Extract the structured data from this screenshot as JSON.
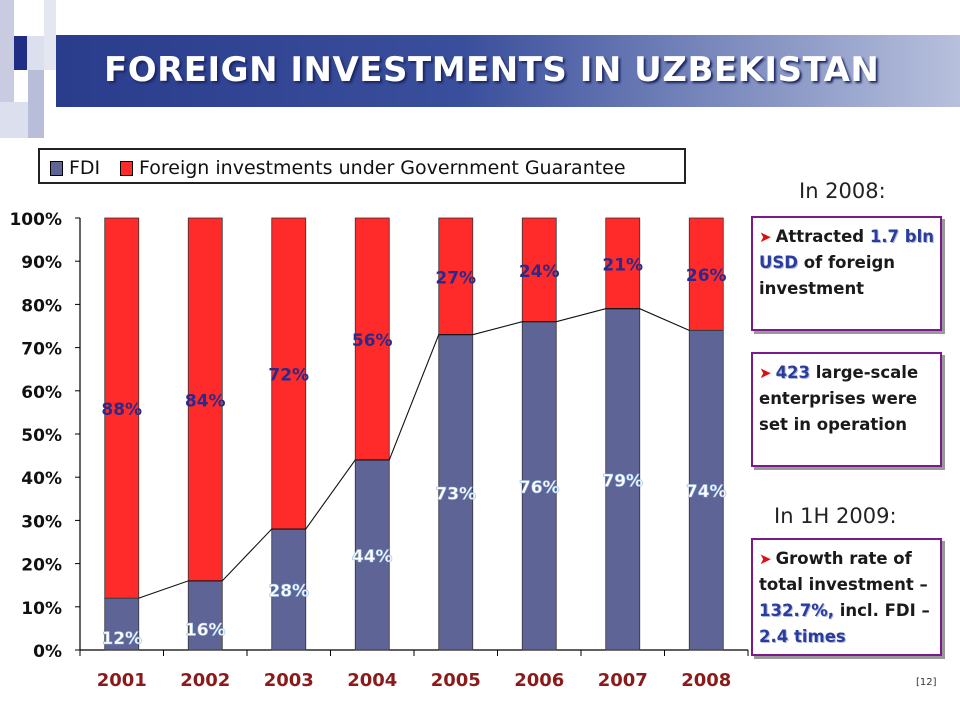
{
  "title": "FOREIGN INVESTMENTS IN UZBEKISTAN",
  "colors": {
    "fdi": "#5e6496",
    "guarantee": "#ff2a2a",
    "title_bar": "#2a3c8c",
    "callout_border": "#7a1a8c",
    "highlight": "#2a3c9c"
  },
  "legend": {
    "fdi": "FDI",
    "guarantee": "Foreign investments under Government Guarantee"
  },
  "chart_data": {
    "type": "bar",
    "stacked": true,
    "categories": [
      "2001",
      "2002",
      "2003",
      "2004",
      "2005",
      "2006",
      "2007",
      "2008"
    ],
    "series": [
      {
        "name": "FDI",
        "values": [
          12,
          16,
          28,
          44,
          73,
          76,
          79,
          74
        ],
        "labels": [
          "12%",
          "16%",
          "28%",
          "44%",
          "73%",
          "76%",
          "79%",
          "74%"
        ]
      },
      {
        "name": "Foreign investments under Government Guarantee",
        "values": [
          88,
          84,
          72,
          56,
          27,
          24,
          21,
          26
        ],
        "labels": [
          "88%",
          "84%",
          "72%",
          "56%",
          "27%",
          "24%",
          "21%",
          "26%"
        ]
      }
    ],
    "yticks": [
      "0%",
      "10%",
      "20%",
      "30%",
      "40%",
      "50%",
      "60%",
      "70%",
      "80%",
      "90%",
      "100%"
    ],
    "ylim": [
      0,
      100
    ],
    "line_overlay": "FDI share connecting line",
    "legend_position": "top"
  },
  "sidebar": {
    "heading_2008": "In 2008:",
    "heading_2009": "In 1H 2009:",
    "callout1": {
      "a": "Attracted ",
      "b": "1.7 bln USD",
      "c": " of foreign investment"
    },
    "callout2": {
      "a": "423",
      "b": " large-scale enterprises were set in operation"
    },
    "callout3": {
      "a": "Growth rate of total investment – ",
      "b": "132.7%,",
      "c": " incl. FDI – ",
      "d": "2.4 times"
    }
  },
  "page_number": "[12]"
}
